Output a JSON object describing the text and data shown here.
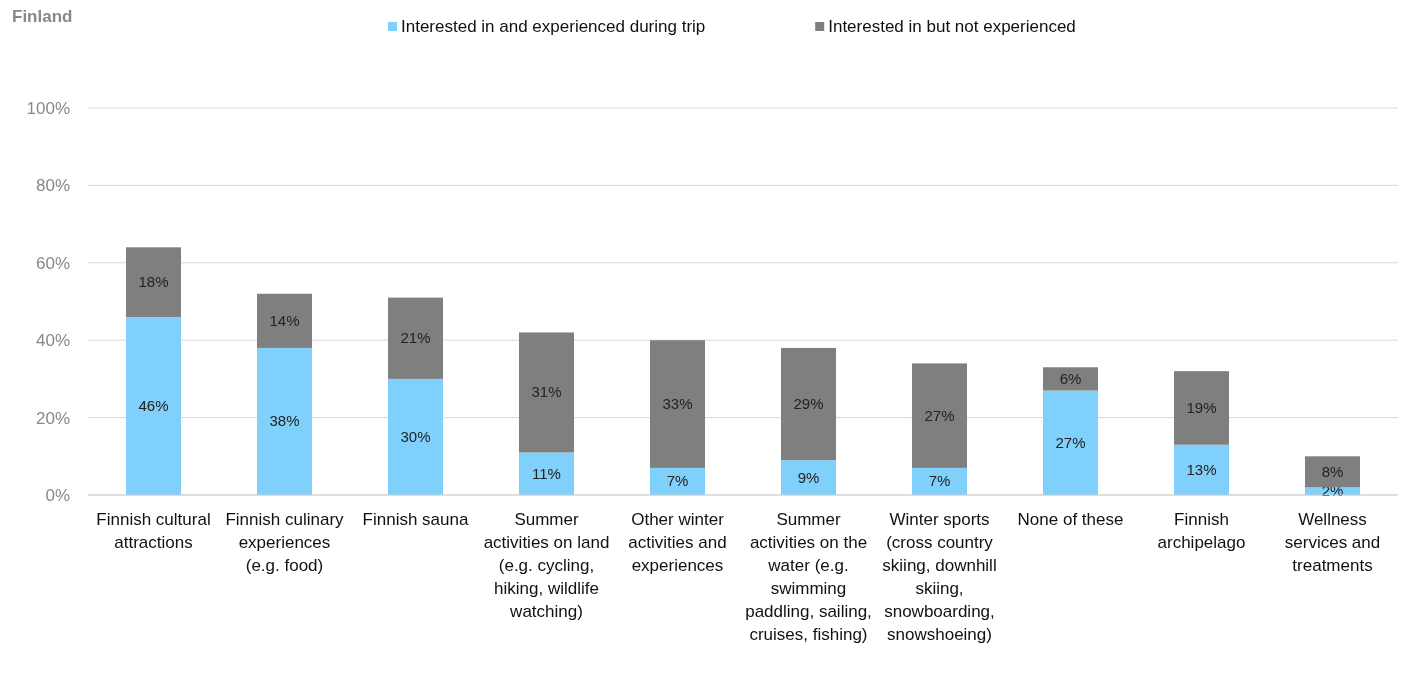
{
  "chart_data": {
    "type": "bar",
    "title": "Finland",
    "stacked": true,
    "categories": [
      "Finnish cultural attractions",
      "Finnish culinary experiences (e.g. food)",
      "Finnish sauna",
      "Summer activities on land (e.g. cycling, hiking, wildlife watching)",
      "Other winter activities and experiences",
      "Summer activities on the water (e.g. swimming paddling, sailing, cruises, fishing)",
      "Winter sports (cross country skiing, downhill skiing, snowboarding, snowshoeing)",
      "None of these",
      "Finnish archipelago",
      "Wellness services and treatments"
    ],
    "series": [
      {
        "name": "Interested in and experienced during trip",
        "color": "#7fd0fa",
        "values": [
          46,
          38,
          30,
          11,
          7,
          9,
          7,
          27,
          13,
          2
        ],
        "value_labels": [
          "46%",
          "38%",
          "30%",
          "11%",
          "7%",
          "9%",
          "7%",
          "27%",
          "13%",
          "2%"
        ]
      },
      {
        "name": "Interested in but not experienced",
        "color": "#7f7f7f",
        "values": [
          18,
          14,
          21,
          31,
          33,
          29,
          27,
          6,
          19,
          8
        ],
        "value_labels": [
          "18%",
          "14%",
          "21%",
          "31%",
          "33%",
          "29%",
          "27%",
          "6%",
          "19%",
          "8%"
        ]
      }
    ],
    "ylim": [
      0,
      100
    ],
    "yticks": [
      {
        "value": 0,
        "label": "0%"
      },
      {
        "value": 20,
        "label": "20%"
      },
      {
        "value": 40,
        "label": "40%"
      },
      {
        "value": 60,
        "label": "60%"
      },
      {
        "value": 80,
        "label": "80%"
      },
      {
        "value": 100,
        "label": "100%"
      }
    ],
    "grid": "y",
    "legend": "top"
  }
}
